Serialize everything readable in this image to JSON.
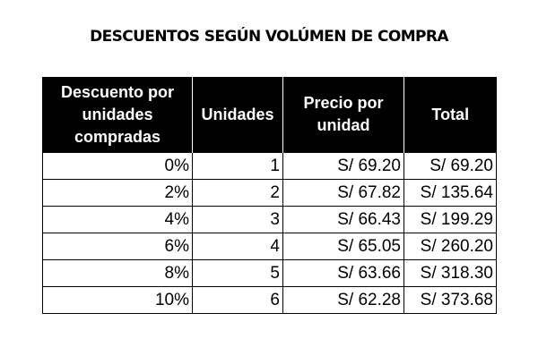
{
  "title": "DESCUENTOS SEGÚN VOLÚMEN DE COMPRA",
  "table": {
    "headers": [
      "Descuento por unidades compradas",
      "Unidades",
      "Precio por unidad",
      "Total"
    ],
    "rows": [
      [
        "0%",
        "1",
        "S/ 69.20",
        "S/ 69.20"
      ],
      [
        "2%",
        "2",
        "S/ 67.82",
        "S/ 135.64"
      ],
      [
        "4%",
        "3",
        "S/ 66.43",
        "S/ 199.29"
      ],
      [
        "6%",
        "4",
        "S/ 65.05",
        "S/ 260.20"
      ],
      [
        "8%",
        "5",
        "S/ 63.66",
        "S/ 318.30"
      ],
      [
        "10%",
        "6",
        "S/ 62.28",
        "S/ 373.68"
      ]
    ]
  }
}
